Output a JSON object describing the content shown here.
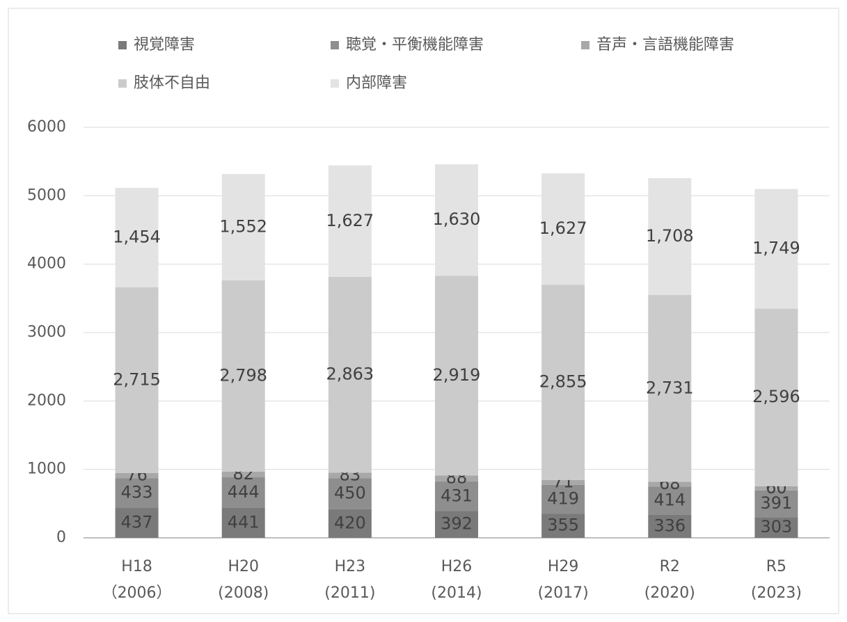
{
  "chart_data": {
    "type": "stacked_bar",
    "categories": [
      "H18\n（2006）",
      "H20\n(2008)",
      "H23\n(2011)",
      "H26\n(2014)",
      "H29\n(2017)",
      "R2\n(2020)",
      "R5\n(2023)"
    ],
    "series": [
      {
        "name": "視覚障害",
        "color": "#7a7a7a",
        "values": [
          437,
          441,
          420,
          392,
          355,
          336,
          303
        ],
        "value_labels": [
          "437",
          "441",
          "420",
          "392",
          "355",
          "336",
          "303"
        ]
      },
      {
        "name": "聴覚・平衡機能障害",
        "color": "#8e8e8e",
        "values": [
          433,
          444,
          450,
          431,
          419,
          414,
          391
        ],
        "value_labels": [
          "433",
          "444",
          "450",
          "431",
          "419",
          "414",
          "391"
        ]
      },
      {
        "name": "音声・言語機能障害",
        "color": "#a8a8a8",
        "values": [
          76,
          82,
          83,
          88,
          71,
          68,
          60
        ],
        "value_labels": [
          "76",
          "82",
          "83",
          "88",
          "71",
          "68",
          "60"
        ]
      },
      {
        "name": "肢体不自由",
        "color": "#cbcbcb",
        "values": [
          2715,
          2798,
          2863,
          2919,
          2855,
          2731,
          2596
        ],
        "value_labels": [
          "2,715",
          "2,798",
          "2,863",
          "2,919",
          "2,855",
          "2,731",
          "2,596"
        ]
      },
      {
        "name": "内部障害",
        "color": "#e3e3e3",
        "values": [
          1454,
          1552,
          1627,
          1630,
          1627,
          1708,
          1749
        ],
        "value_labels": [
          "1,454",
          "1,552",
          "1,627",
          "1,630",
          "1,627",
          "1,708",
          "1,749"
        ]
      }
    ],
    "ylim": [
      0,
      6000
    ],
    "yticks": [
      0,
      1000,
      2000,
      3000,
      4000,
      5000,
      6000
    ],
    "grid": true
  }
}
